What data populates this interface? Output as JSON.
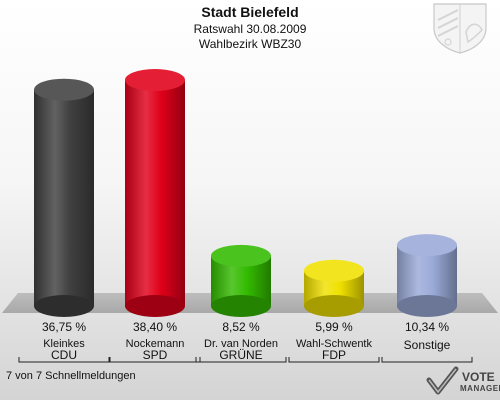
{
  "header": {
    "title": "Stadt Bielefeld",
    "subtitle1": "Ratswahl 30.08.2009",
    "subtitle2": "Wahlbezirk WBZ30"
  },
  "footer": "7 von 7 Schnellmeldungen",
  "logo": {
    "line1": "VOTE",
    "line2": "MANAGER"
  },
  "chart_data": {
    "type": "bar",
    "categories": [
      "CDU",
      "SPD",
      "GRÜNE",
      "FDP",
      "Sonstige"
    ],
    "candidates": [
      "Kleinkes",
      "Nockemann",
      "Dr. van Norden",
      "Wahl-Schwentk",
      ""
    ],
    "values": [
      36.75,
      38.4,
      8.52,
      5.99,
      10.34
    ],
    "value_labels": [
      "36,75 %",
      "38,40 %",
      "8,52 %",
      "5,99 %",
      "10,34 %"
    ],
    "colors": [
      "#404040",
      "#e0001a",
      "#33bb00",
      "#f0e000",
      "#9aaad8"
    ],
    "ylim": [
      0,
      38.4
    ]
  }
}
